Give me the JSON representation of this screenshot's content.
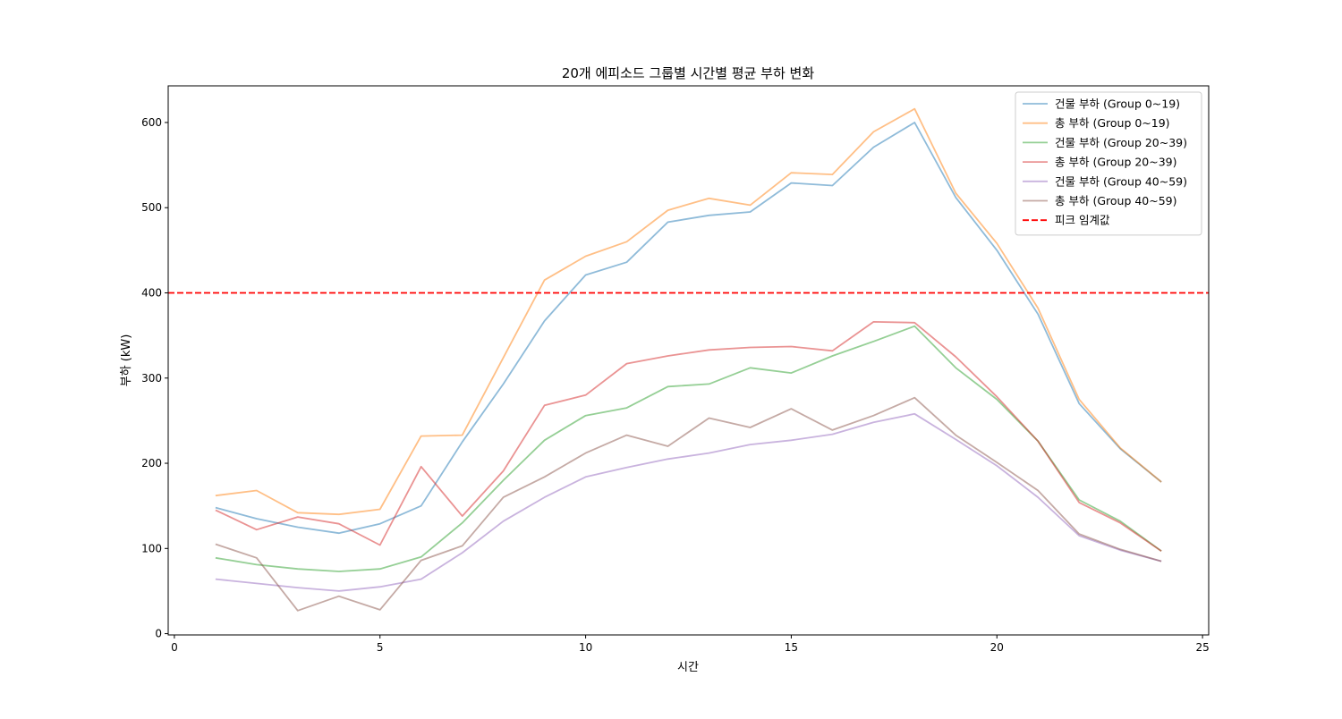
{
  "chart_data": {
    "type": "line",
    "title": "20개 에피소드 그룹별 시간별 평균 부하 변화",
    "xlabel": "시간",
    "ylabel": "부하 (kW)",
    "xlim": [
      -0.15,
      25.15
    ],
    "ylim": [
      -1.5,
      643
    ],
    "xticks": [
      0,
      5,
      10,
      15,
      20,
      25
    ],
    "yticks": [
      0,
      100,
      200,
      300,
      400,
      500,
      600
    ],
    "grid": false,
    "legend_position": "top-right",
    "x": [
      1,
      2,
      3,
      4,
      5,
      6,
      7,
      8,
      9,
      10,
      11,
      12,
      13,
      14,
      15,
      16,
      17,
      18,
      19,
      20,
      21,
      22,
      23,
      24
    ],
    "series": [
      {
        "name": "건물 부하 (Group 0~19)",
        "color": "#1f77b4",
        "style": "solid",
        "values": [
          148,
          135,
          125,
          118,
          129,
          150,
          225,
          293,
          367,
          421,
          436,
          483,
          491,
          495,
          529,
          526,
          571,
          600,
          512,
          450,
          375,
          270,
          217,
          178
        ]
      },
      {
        "name": "총 부하 (Group 0~19)",
        "color": "#ff7f0e",
        "style": "solid",
        "values": [
          162,
          168,
          142,
          140,
          146,
          232,
          233,
          324,
          415,
          443,
          460,
          497,
          511,
          503,
          541,
          539,
          589,
          616,
          517,
          458,
          382,
          275,
          218,
          178
        ]
      },
      {
        "name": "건물 부하 (Group 20~39)",
        "color": "#2ca02c",
        "style": "solid",
        "values": [
          89,
          81,
          76,
          73,
          76,
          90,
          130,
          180,
          227,
          256,
          265,
          290,
          293,
          312,
          306,
          326,
          343,
          361,
          312,
          275,
          226,
          157,
          132,
          97
        ]
      },
      {
        "name": "총 부하 (Group 20~39)",
        "color": "#d62728",
        "style": "solid",
        "values": [
          145,
          122,
          137,
          129,
          104,
          196,
          138,
          191,
          268,
          280,
          317,
          326,
          333,
          336,
          337,
          332,
          366,
          365,
          325,
          278,
          226,
          154,
          130,
          97
        ]
      },
      {
        "name": "건물 부하 (Group 40~59)",
        "color": "#9467bd",
        "style": "solid",
        "values": [
          64,
          59,
          54,
          50,
          55,
          64,
          95,
          132,
          160,
          184,
          195,
          205,
          212,
          222,
          227,
          234,
          248,
          258,
          228,
          197,
          160,
          115,
          98,
          85
        ]
      },
      {
        "name": "총 부하 (Group 40~59)",
        "color": "#8c564b",
        "style": "solid",
        "values": [
          105,
          89,
          27,
          44,
          28,
          86,
          103,
          160,
          184,
          212,
          233,
          220,
          253,
          242,
          264,
          239,
          256,
          277,
          233,
          201,
          168,
          117,
          99,
          85
        ]
      }
    ],
    "reference_lines": [
      {
        "name": "피크 임계값",
        "y": 400,
        "color": "#ff0000",
        "style": "dashed"
      }
    ]
  }
}
